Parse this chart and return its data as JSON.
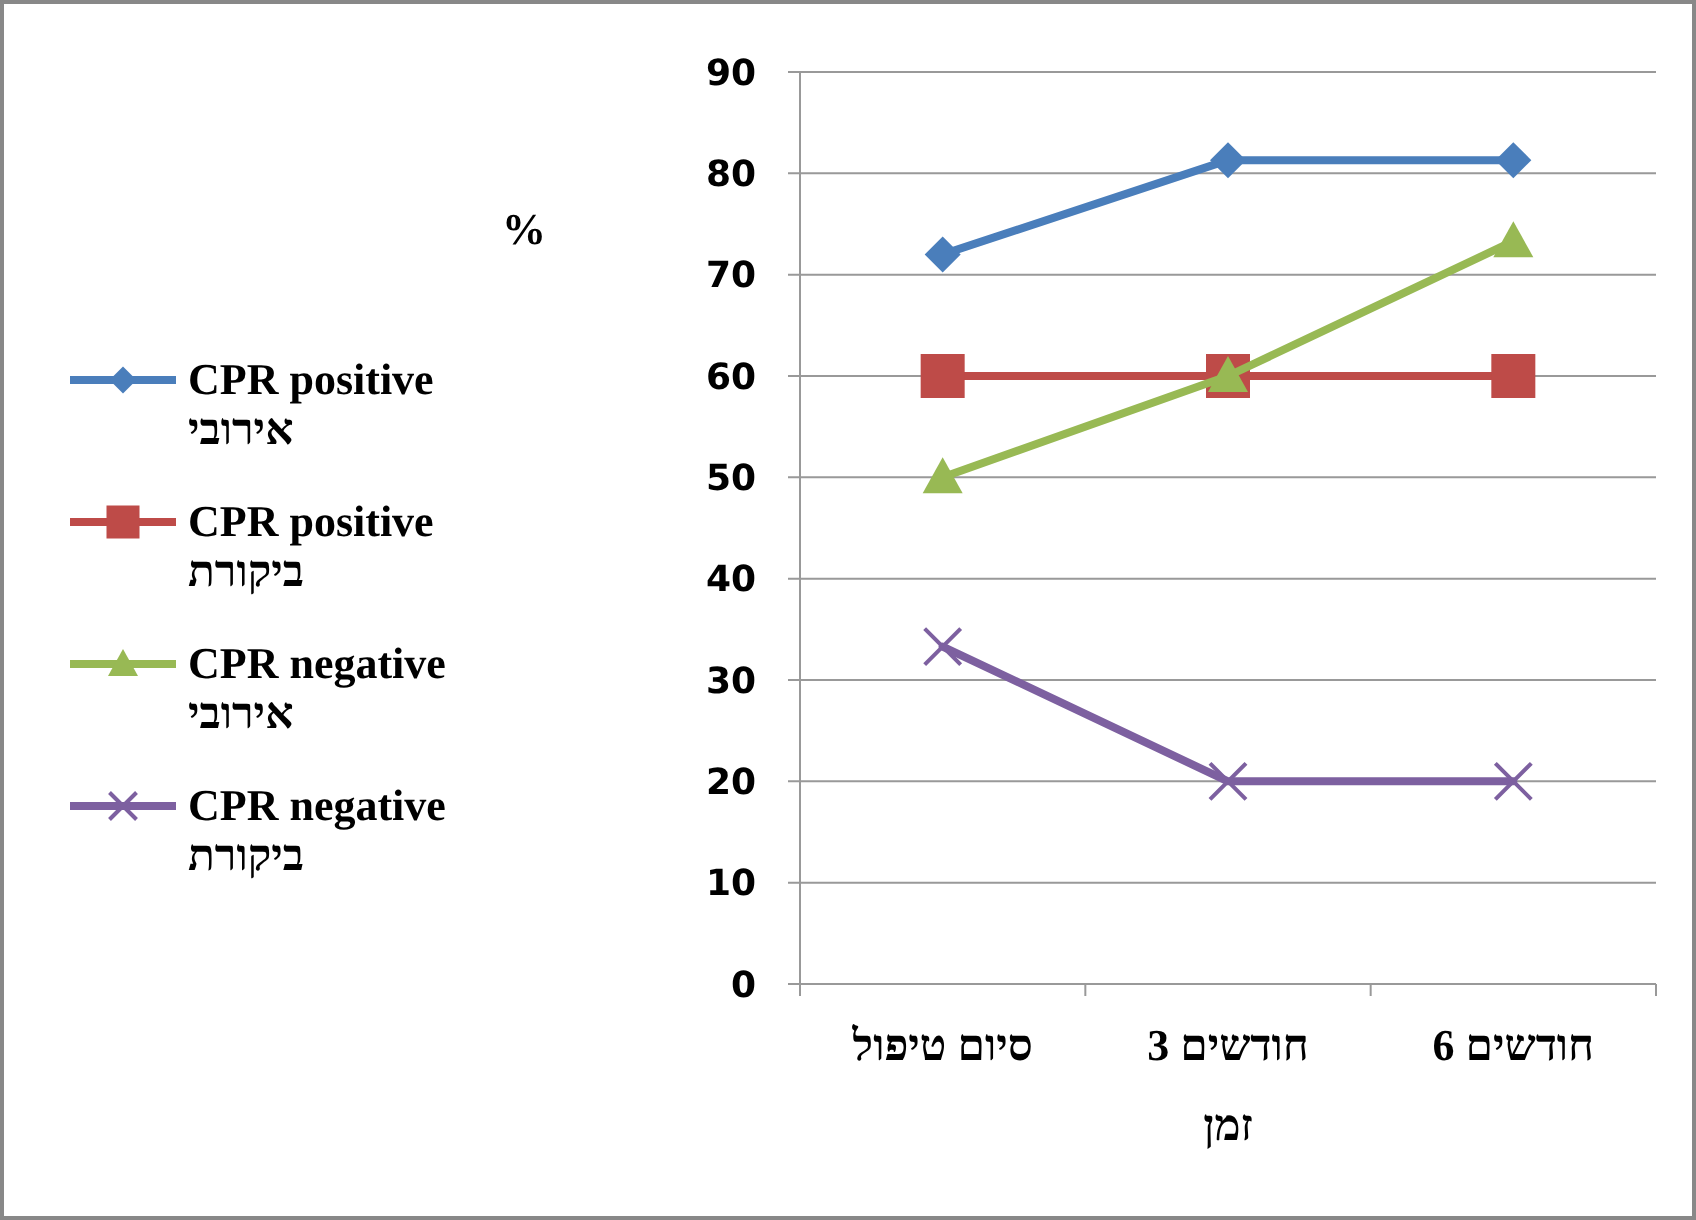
{
  "chart_data": {
    "type": "line",
    "ylabel": "%",
    "xlabel": "זמן",
    "categories": [
      "סיום טיפול",
      "3 חודשים",
      "6 חודשים"
    ],
    "series": [
      {
        "name": "CPR positive\nאירובי",
        "color": "#4a7ebb",
        "values": [
          72,
          81.3,
          81.3
        ],
        "marker": "diamond"
      },
      {
        "name": "CPR positive\nביקורת",
        "color": "#be4b48",
        "values": [
          60,
          60,
          60
        ],
        "marker": "square"
      },
      {
        "name": "CPR negative\nאירובי",
        "color": "#98b954",
        "values": [
          50,
          60,
          73.3
        ],
        "marker": "triangle"
      },
      {
        "name": "CPR negative\nביקורת",
        "color": "#7d60a0",
        "values": [
          33.3,
          20,
          20
        ],
        "marker": "cross"
      }
    ],
    "ylim": [
      0,
      90
    ],
    "yticks": [
      0,
      10,
      20,
      30,
      40,
      50,
      60,
      70,
      80,
      90
    ],
    "grid": "y",
    "legend": "left",
    "line_style": "solid"
  }
}
